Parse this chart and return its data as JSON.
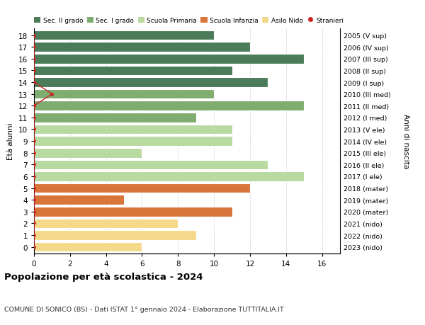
{
  "ages": [
    18,
    17,
    16,
    15,
    14,
    13,
    12,
    11,
    10,
    9,
    8,
    7,
    6,
    5,
    4,
    3,
    2,
    1,
    0
  ],
  "labels_right": [
    "2005 (V sup)",
    "2006 (IV sup)",
    "2007 (III sup)",
    "2008 (II sup)",
    "2009 (I sup)",
    "2010 (III med)",
    "2011 (II med)",
    "2012 (I med)",
    "2013 (V ele)",
    "2014 (IV ele)",
    "2015 (III ele)",
    "2016 (II ele)",
    "2017 (I ele)",
    "2018 (mater)",
    "2019 (mater)",
    "2020 (mater)",
    "2021 (nido)",
    "2022 (nido)",
    "2023 (nido)"
  ],
  "bar_values": [
    10,
    12,
    15,
    11,
    13,
    10,
    15,
    9,
    11,
    11,
    6,
    13,
    15,
    12,
    5,
    11,
    8,
    9,
    6
  ],
  "bar_colors": [
    "#4a7c59",
    "#4a7c59",
    "#4a7c59",
    "#4a7c59",
    "#4a7c59",
    "#7fad6f",
    "#7fad6f",
    "#7fad6f",
    "#b8d9a0",
    "#b8d9a0",
    "#b8d9a0",
    "#b8d9a0",
    "#b8d9a0",
    "#d9743a",
    "#d9743a",
    "#d9743a",
    "#f5d98b",
    "#f5d98b",
    "#f5d98b"
  ],
  "stranieri_x": [
    0,
    0,
    0,
    0,
    0,
    1,
    0,
    0,
    0,
    0,
    0,
    0,
    0,
    0,
    0,
    0,
    0,
    0,
    0
  ],
  "legend_labels": [
    "Sec. II grado",
    "Sec. I grado",
    "Scuola Primaria",
    "Scuola Infanzia",
    "Asilo Nido",
    "Stranieri"
  ],
  "legend_colors": [
    "#4a7c59",
    "#7fad6f",
    "#b8d9a0",
    "#d9743a",
    "#f5d98b",
    "#cc2222"
  ],
  "ylabel_left": "Età alunni",
  "ylabel_right": "Anni di nascita",
  "title": "Popolazione per età scolastica - 2024",
  "subtitle": "COMUNE DI SONICO (BS) - Dati ISTAT 1° gennaio 2024 - Elaborazione TUTTITALIA.IT",
  "xlim": [
    0,
    17
  ],
  "xticks": [
    0,
    2,
    4,
    6,
    8,
    10,
    12,
    14,
    16
  ],
  "background_color": "#ffffff",
  "grid_color": "#cccccc"
}
